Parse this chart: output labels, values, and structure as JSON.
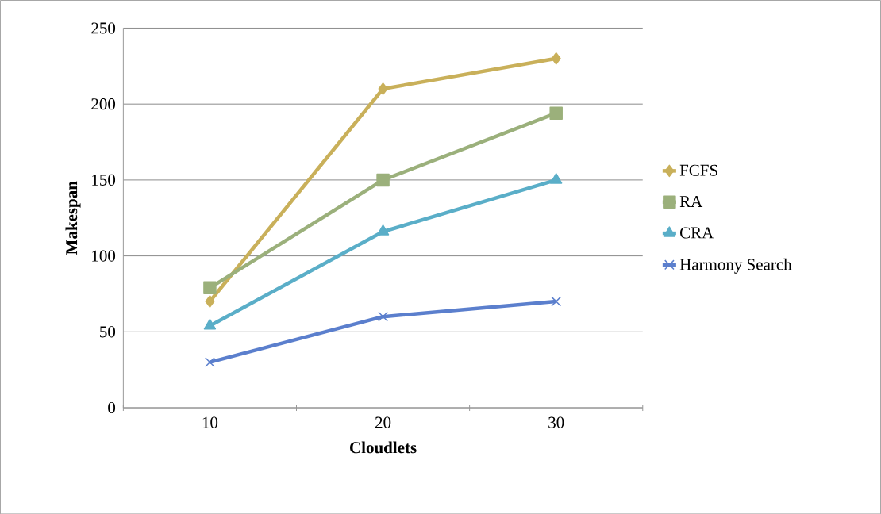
{
  "chart_data": {
    "type": "line",
    "xlabel": "Cloudlets",
    "ylabel": "Makespan",
    "categories": [
      "10",
      "20",
      "30"
    ],
    "ylim": [
      0,
      250
    ],
    "yticks": [
      0,
      50,
      100,
      150,
      200,
      250
    ],
    "grid": "y",
    "legend": "right",
    "line_style": "solid",
    "series": [
      {
        "name": "FCFS",
        "color": "#c9b05a",
        "marker": "diamond",
        "values": [
          70,
          210,
          230
        ]
      },
      {
        "name": "RA",
        "color": "#9bb07b",
        "marker": "square",
        "values": [
          79,
          150,
          194
        ]
      },
      {
        "name": "CRA",
        "color": "#5aaec8",
        "marker": "triangle",
        "values": [
          54,
          116,
          150
        ]
      },
      {
        "name": "Harmony Search",
        "color": "#5b7fcd",
        "marker": "cross",
        "values": [
          30,
          60,
          70
        ]
      }
    ]
  }
}
